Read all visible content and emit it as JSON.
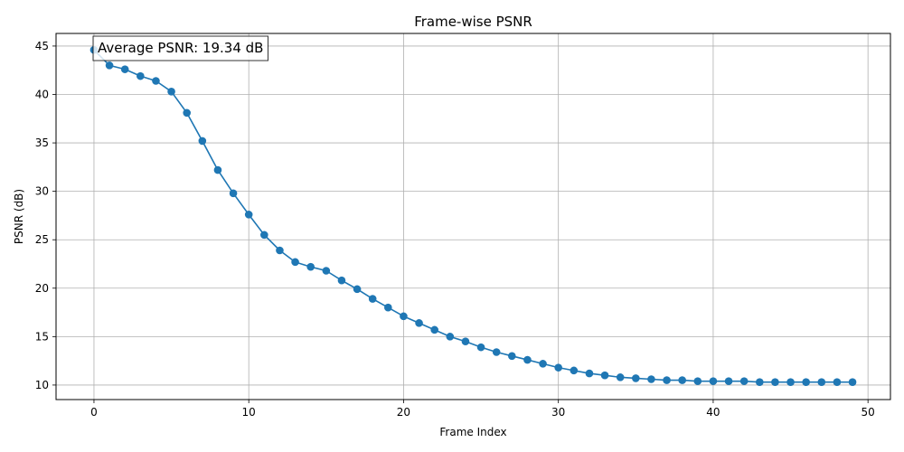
{
  "chart_data": {
    "type": "line",
    "title": "Frame-wise PSNR",
    "xlabel": "Frame Index",
    "ylabel": "PSNR (dB)",
    "xlim": [
      -2.45,
      51.45
    ],
    "ylim": [
      8.5,
      46.3
    ],
    "xticks": [
      0,
      10,
      20,
      30,
      40,
      50
    ],
    "yticks": [
      10,
      15,
      20,
      25,
      30,
      35,
      40,
      45
    ],
    "grid": true,
    "annotation": "Average PSNR: 19.34 dB",
    "series": [
      {
        "color": "#1f77b4",
        "marker": "circle",
        "x": [
          0,
          1,
          2,
          3,
          4,
          5,
          6,
          7,
          8,
          9,
          10,
          11,
          12,
          13,
          14,
          15,
          16,
          17,
          18,
          19,
          20,
          21,
          22,
          23,
          24,
          25,
          26,
          27,
          28,
          29,
          30,
          31,
          32,
          33,
          34,
          35,
          36,
          37,
          38,
          39,
          40,
          41,
          42,
          43,
          44,
          45,
          46,
          47,
          48,
          49
        ],
        "y": [
          44.6,
          43.0,
          42.6,
          41.9,
          41.4,
          40.3,
          38.1,
          35.2,
          32.2,
          29.8,
          27.6,
          25.5,
          23.9,
          22.7,
          22.2,
          21.8,
          20.8,
          19.9,
          18.9,
          18.0,
          17.1,
          16.4,
          15.7,
          15.0,
          14.5,
          13.9,
          13.4,
          13.0,
          12.6,
          12.2,
          11.8,
          11.5,
          11.2,
          11.0,
          10.8,
          10.7,
          10.6,
          10.5,
          10.5,
          10.4,
          10.4,
          10.4,
          10.4,
          10.3,
          10.3,
          10.3,
          10.3,
          10.3,
          10.3,
          10.3
        ]
      }
    ]
  }
}
